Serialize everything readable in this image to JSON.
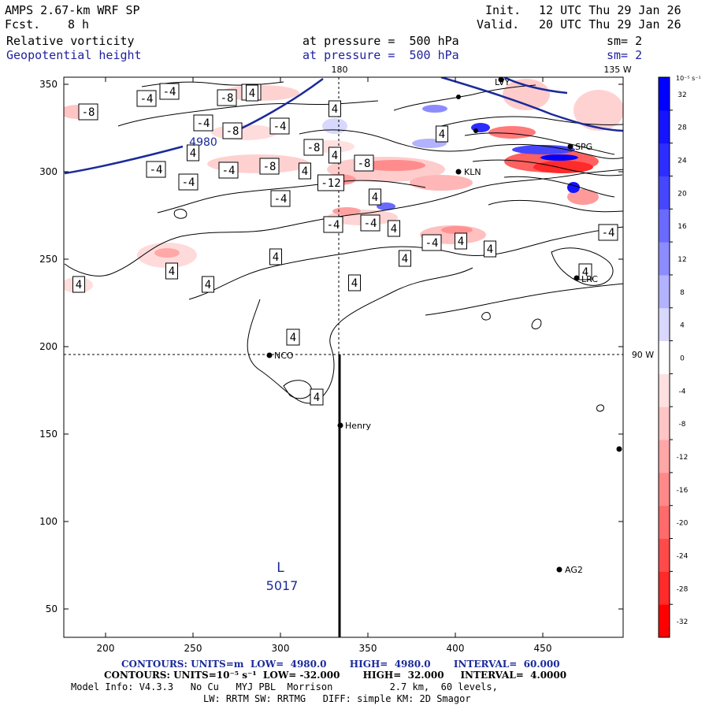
{
  "header": {
    "model": "AMPS 2.67-km WRF SP",
    "fcst_label": "Fcst.",
    "fcst_value": "8 h",
    "init_label": "Init.",
    "init_value": "12 UTC Thu 29 Jan 26",
    "valid_label": "Valid.",
    "valid_value": "20 UTC Thu 29 Jan 26",
    "field1": "Relative vorticity",
    "field1_pressure": "at pressure =  500 hPa",
    "field1_sm": "sm= 2",
    "field2": "Geopotential height",
    "field2_pressure": "at pressure =  500 hPa",
    "field2_sm": "sm= 2"
  },
  "map": {
    "x_ticks": [
      "200",
      "250",
      "300",
      "350",
      "400",
      "450"
    ],
    "y_ticks": [
      "350",
      "300",
      "250",
      "200",
      "150",
      "100",
      "50"
    ],
    "lon_label_180": "180",
    "lon_label_135w": "135 W",
    "lon_label_90w": "90 W",
    "stations": [
      "LVY",
      "KLN",
      "LRC",
      "NCO",
      "Henry",
      "AG2",
      "SPG"
    ],
    "contour_labels": [
      "-4",
      "-4",
      "-8",
      "-4",
      "-8",
      "-4",
      "-8",
      "-4",
      "-8",
      "-8",
      "-12",
      "-8",
      "-4",
      "-4",
      "-4",
      "-4",
      "-4",
      "-4",
      "-4",
      "4",
      "4",
      "4",
      "4",
      "4",
      "4",
      "4",
      "4",
      "4",
      "4",
      "4",
      "4",
      "4",
      "4",
      "4",
      "4",
      "-4"
    ],
    "height_label": "4980",
    "low_symbol": "L",
    "low_value": "5017",
    "colors": {
      "positive": "#0000ff",
      "negative": "#ff0000",
      "height_contour": "#1a2a9a"
    }
  },
  "colorbar": {
    "unit_label": "10⁻⁵ s⁻¹",
    "labels": [
      "32",
      "28",
      "24",
      "20",
      "16",
      "12",
      "8",
      "4",
      "0",
      "-4",
      "-8",
      "-12",
      "-16",
      "-20",
      "-24",
      "-28",
      "-32"
    ],
    "fill_colors": [
      "#0000ff",
      "#1414ff",
      "#2d2dff",
      "#4646ff",
      "#6a6aff",
      "#8c8cff",
      "#b2b2ff",
      "#d8d8ff",
      "#ffffff",
      "#ffe0e0",
      "#ffc4c4",
      "#ffa6a6",
      "#ff8888",
      "#ff6a6a",
      "#ff4a4a",
      "#ff2a2a",
      "#ff0000"
    ]
  },
  "footer": {
    "line1": "CONTOURS: UNITS=m  LOW=  4980.0       HIGH=  4980.0       INTERVAL=  60.000",
    "line2": "CONTOURS: UNITS=10⁻⁵ s⁻¹  LOW= -32.000       HIGH=  32.000     INTERVAL=  4.0000",
    "line3": "Model Info: V4.3.3   No Cu   MYJ PBL  Morrison          2.7 km,  60 levels,",
    "line4": "LW: RRTM SW: RRTMG   DIFF: simple KM: 2D Smagor"
  }
}
